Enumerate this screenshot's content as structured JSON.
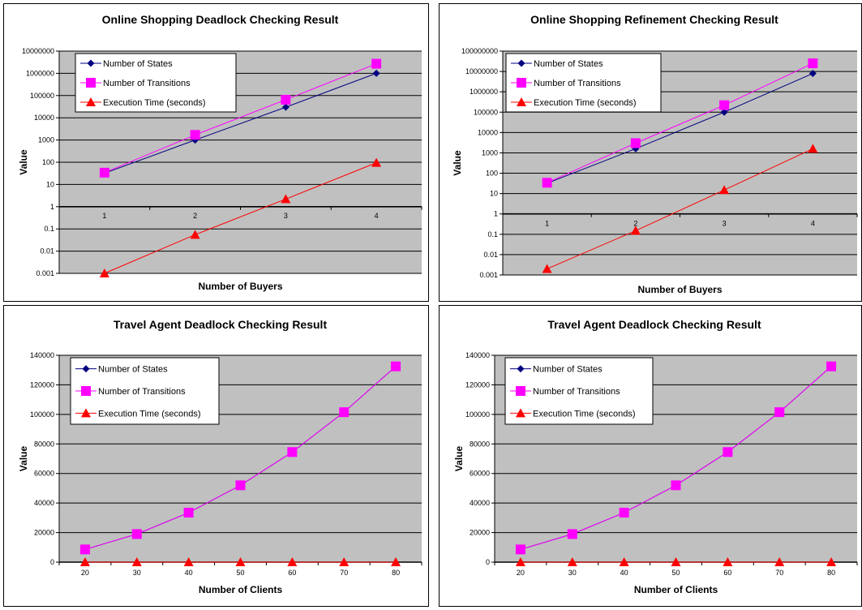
{
  "chart_data": [
    {
      "type": "line",
      "title": "Online Shopping Deadlock Checking Result",
      "xlabel": "Number of Buyers",
      "ylabel": "Value",
      "yscale": "log",
      "ylim": [
        0.001,
        10000000
      ],
      "ytick_labels": [
        "0.001",
        "0.01",
        "0.1",
        "1",
        "10",
        "100",
        "1000",
        "10000",
        "100000",
        "1000000",
        "10000000"
      ],
      "categories": [
        "1",
        "2",
        "3",
        "4"
      ],
      "grid": true,
      "legend": "top-left",
      "series": [
        {
          "name": "Number of States",
          "color": "#000080",
          "marker": "diamond",
          "values": [
            32,
            1000,
            30000,
            1000000
          ]
        },
        {
          "name": "Number of Transitions",
          "color": "#ff00ff",
          "marker": "square",
          "values": [
            34,
            1700,
            65000,
            2700000
          ]
        },
        {
          "name": "Execution Time (seconds)",
          "color": "#ff0000",
          "marker": "triangle",
          "values": [
            0.001,
            0.055,
            2.2,
            95
          ]
        }
      ]
    },
    {
      "type": "line",
      "title": "Online Shopping Refinement Checking Result",
      "xlabel": "Number of Buyers",
      "ylabel": "Value",
      "yscale": "log",
      "ylim": [
        0.001,
        100000000
      ],
      "ytick_labels": [
        "0.001",
        "0.01",
        "0.1",
        "1",
        "10",
        "100",
        "1000",
        "10000",
        "100000",
        "1000000",
        "10000000",
        "100000000"
      ],
      "categories": [
        "1",
        "2",
        "3",
        "4"
      ],
      "grid": true,
      "legend": "top-left",
      "series": [
        {
          "name": "Number of States",
          "color": "#000080",
          "marker": "diamond",
          "values": [
            32,
            1600,
            100000,
            8000000
          ]
        },
        {
          "name": "Number of Transitions",
          "color": "#ff00ff",
          "marker": "square",
          "values": [
            34,
            3000,
            220000,
            25000000
          ]
        },
        {
          "name": "Execution Time (seconds)",
          "color": "#ff0000",
          "marker": "triangle",
          "values": [
            0.002,
            0.15,
            15,
            1600
          ]
        }
      ]
    },
    {
      "type": "line",
      "title": "Travel Agent Deadlock Checking Result",
      "xlabel": "Number of Clients",
      "ylabel": "Value",
      "yscale": "linear",
      "ylim": [
        0,
        140000
      ],
      "ytick_labels": [
        "0",
        "20000",
        "40000",
        "60000",
        "80000",
        "100000",
        "120000",
        "140000"
      ],
      "categories": [
        "20",
        "30",
        "40",
        "50",
        "60",
        "70",
        "80"
      ],
      "grid": true,
      "legend": "top-left",
      "series": [
        {
          "name": "Number of States",
          "color": "#000080",
          "marker": "diamond",
          "values": [
            8600,
            19000,
            33500,
            52000,
            74500,
            101500,
            132500
          ]
        },
        {
          "name": "Number of Transitions",
          "color": "#ff00ff",
          "marker": "square",
          "values": [
            8600,
            19000,
            33500,
            52000,
            74500,
            101500,
            132500
          ]
        },
        {
          "name": "Execution Time (seconds)",
          "color": "#ff0000",
          "marker": "triangle",
          "values": [
            1,
            2,
            4,
            6,
            10,
            14,
            20
          ]
        }
      ]
    },
    {
      "type": "line",
      "title": "Travel Agent Deadlock Checking Result",
      "xlabel": "Number of Clients",
      "ylabel": "Value",
      "yscale": "linear",
      "ylim": [
        0,
        140000
      ],
      "ytick_labels": [
        "0",
        "20000",
        "40000",
        "60000",
        "80000",
        "100000",
        "120000",
        "140000"
      ],
      "categories": [
        "20",
        "30",
        "40",
        "50",
        "60",
        "70",
        "80"
      ],
      "grid": true,
      "legend": "top-left",
      "series": [
        {
          "name": "Number of States",
          "color": "#000080",
          "marker": "diamond",
          "values": [
            8600,
            19000,
            33500,
            52000,
            74500,
            101500,
            132500
          ]
        },
        {
          "name": "Number of Transitions",
          "color": "#ff00ff",
          "marker": "square",
          "values": [
            8600,
            19000,
            33500,
            52000,
            74500,
            101500,
            132500
          ]
        },
        {
          "name": "Execution Time (seconds)",
          "color": "#ff0000",
          "marker": "triangle",
          "values": [
            1,
            2,
            4,
            6,
            10,
            14,
            20
          ]
        }
      ]
    }
  ]
}
